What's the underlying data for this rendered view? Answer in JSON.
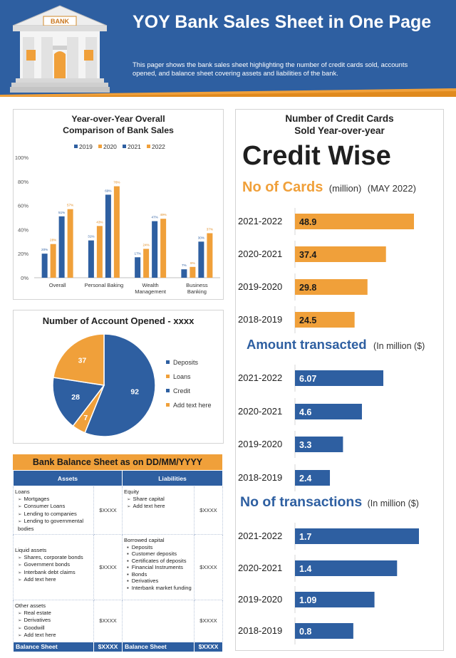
{
  "header": {
    "title": "YOY Bank Sales Sheet in One Page",
    "subtitle": "This pager shows the bank sales sheet highlighting the number of credit cards sold, accounts opened, and balance sheet covering assets and liabilities of the bank.",
    "bank_sign": "BANK"
  },
  "chart_data": [
    {
      "type": "bar",
      "title": "Year-over-Year Overall Comparison of Bank Sales",
      "legend": [
        "2019",
        "2020",
        "2021",
        "2022"
      ],
      "categories": [
        "Overall",
        "Personal Baking",
        "Wealth Management",
        "Business Banking"
      ],
      "series": [
        {
          "name": "2019",
          "color": "#2e5fa1",
          "values": [
            20,
            31,
            17,
            7
          ]
        },
        {
          "name": "2020",
          "color": "#f0a03a",
          "values": [
            28,
            43,
            24,
            9
          ]
        },
        {
          "name": "2021",
          "color": "#2e5fa1",
          "values": [
            51,
            69,
            47,
            30
          ]
        },
        {
          "name": "2022",
          "color": "#f0a03a",
          "values": [
            57,
            76,
            49,
            37
          ]
        }
      ],
      "y_ticks": [
        "0%",
        "20%",
        "40%",
        "60%",
        "80%",
        "100%"
      ],
      "ylim": [
        0,
        100
      ]
    },
    {
      "type": "pie",
      "title": "Number of Account Opened - xxxx",
      "labels": [
        "Deposits",
        "Loans",
        "Credit",
        "Add text here"
      ],
      "values": [
        92,
        7,
        28,
        37
      ],
      "colors": [
        "#2e5fa1",
        "#f0a03a",
        "#2e5fa1",
        "#f0a03a"
      ]
    },
    {
      "type": "bar",
      "orientation": "horizontal",
      "title": "No of Cards",
      "unit": "(million)",
      "period": "(MAY 2022)",
      "categories": [
        "2021-2022",
        "2020-2021",
        "2019-2020",
        "2018-2019"
      ],
      "values": [
        48.9,
        37.4,
        29.8,
        24.5
      ],
      "color": "#f0a03a"
    },
    {
      "type": "bar",
      "orientation": "horizontal",
      "title": "Amount transacted",
      "unit": "(In million ($)",
      "categories": [
        "2021-2022",
        "2020-2021",
        "2019-2020",
        "2018-2019"
      ],
      "values": [
        6.07,
        4.6,
        3.3,
        2.4
      ],
      "color": "#2e5fa1"
    },
    {
      "type": "bar",
      "orientation": "horizontal",
      "title": "No of transactions",
      "unit": "(In million ($)",
      "categories": [
        "2021-2022",
        "2020-2021",
        "2019-2020",
        "2018-2019"
      ],
      "values": [
        1.7,
        1.4,
        1.09,
        0.8
      ],
      "color": "#2e5fa1"
    }
  ],
  "pie_labels": [
    "92",
    "7",
    "28",
    "37"
  ],
  "yoy": {
    "title_line1": "Year-over-Year Overall",
    "title_line2": "Comparison of Bank Sales",
    "value_labels": [
      [
        "20%",
        "28%",
        "51%",
        "57%"
      ],
      [
        "31%",
        "43%",
        "69%",
        "76%"
      ],
      [
        "17%",
        "24%",
        "47%",
        "49%"
      ],
      [
        "7%",
        "9%",
        "30%",
        "37%"
      ]
    ],
    "cat_lines": [
      [
        "Overall"
      ],
      [
        "Personal Baking"
      ],
      [
        "Wealth",
        "Management"
      ],
      [
        "Business",
        "Banking"
      ]
    ]
  },
  "right": {
    "title_line1": "Number of Credit Cards",
    "title_line2": "Sold Year-over-year",
    "brand": "Credit Wise",
    "cards_labels": [
      "48.9",
      "37.4",
      "29.8",
      "24.5"
    ],
    "amount_labels": [
      "6.07",
      "4.6",
      "3.3",
      "2.4"
    ],
    "trans_labels": [
      "1.7",
      "1.4",
      "1.09",
      "0.8"
    ]
  },
  "balance_sheet": {
    "title": "Bank Balance Sheet as on DD/MM/YYYY",
    "assets_header": "Assets",
    "liabilities_header": "Liabilities",
    "amount": "$XXXX",
    "rows": [
      {
        "asset_heading": "Loans",
        "asset_items": [
          "Mortgages",
          "Consumer Loans",
          "Lending  to companies",
          "Lending  to governmental bodies"
        ],
        "liab_heading": "Equity",
        "liab_items": [
          "Share capital",
          "Add text here"
        ]
      },
      {
        "asset_heading": "Liquid assets",
        "asset_items": [
          "Shares, corporate bonds",
          "Government bonds",
          "Interbank debt claims",
          "Add text here"
        ],
        "liab_heading": "Borrowed capital",
        "liab_items": [
          "Deposits",
          "Customer deposits",
          "Certificates of deposits",
          "Financial Instruments",
          "Bonds",
          "Derivatives",
          "Interbank market funding"
        ]
      },
      {
        "asset_heading": "Other assets",
        "asset_items": [
          "Real estate",
          "Derivatives",
          "Goodwill",
          "Add text here"
        ],
        "liab_heading": "",
        "liab_items": []
      }
    ],
    "footer_label": "Balance Sheet",
    "footer_amount": "$XXXX"
  }
}
